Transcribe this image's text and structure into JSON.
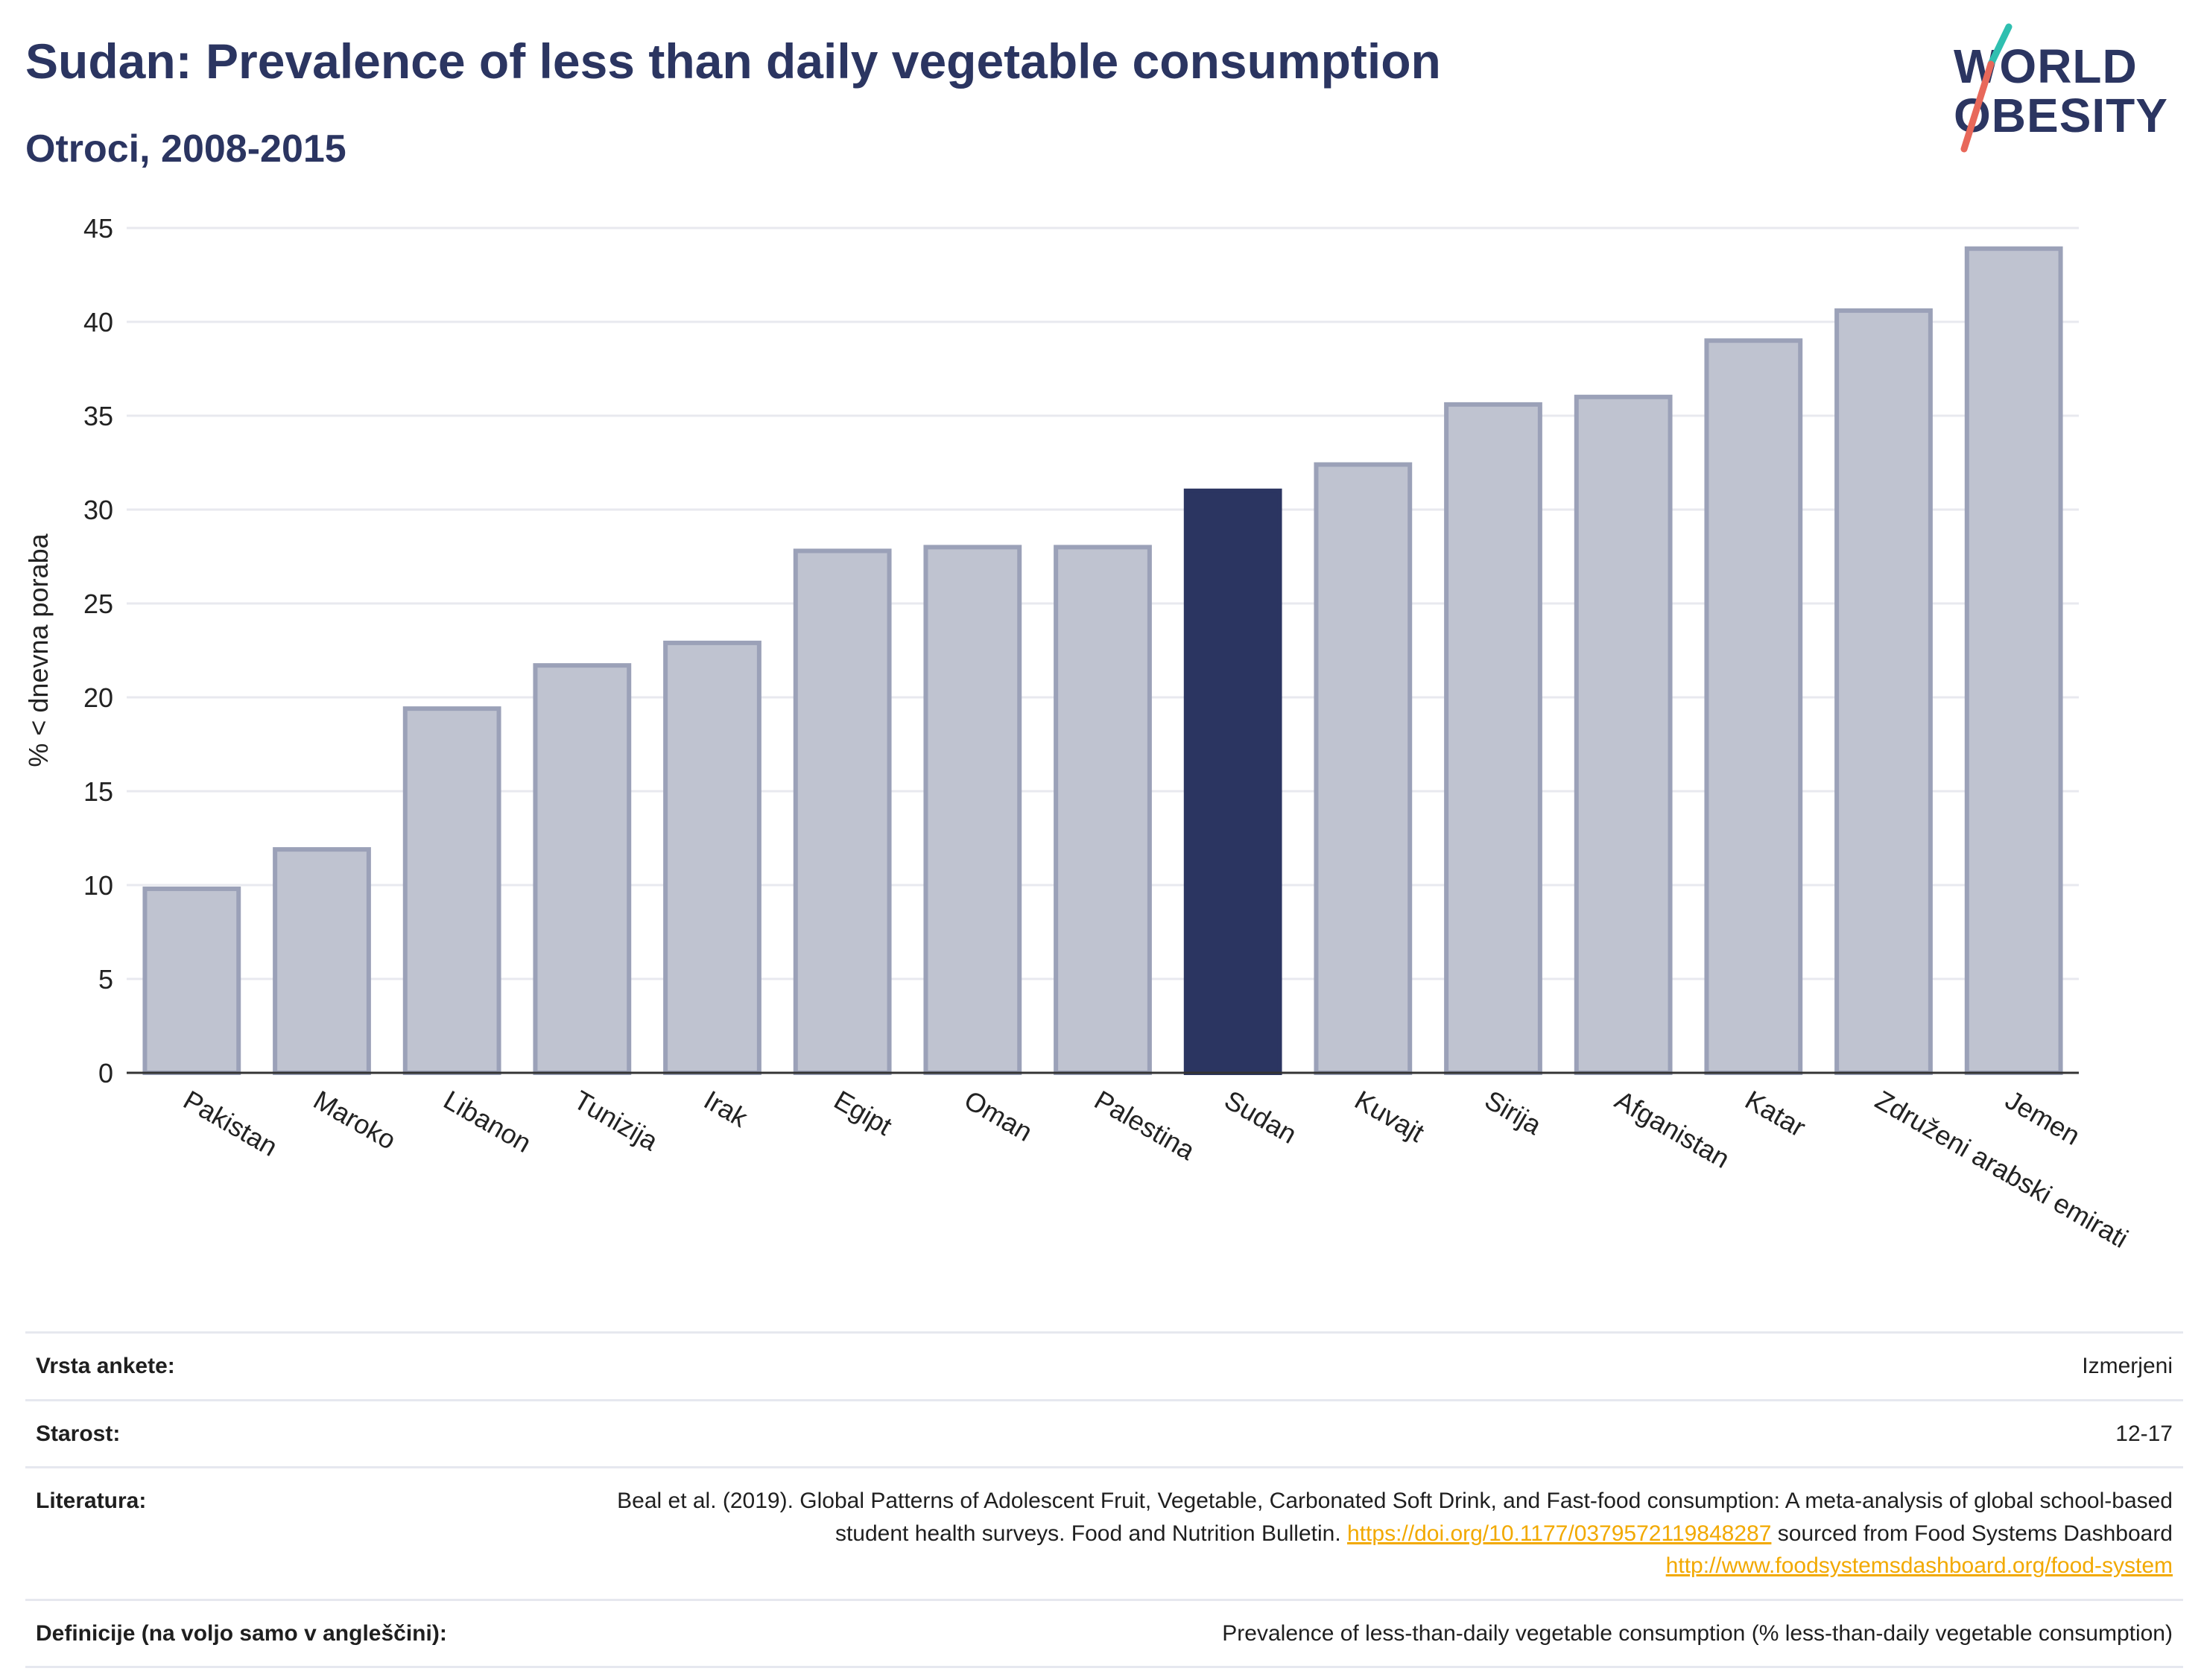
{
  "header": {
    "title": "Sudan: Prevalence of less than daily vegetable consumption",
    "subtitle": "Otroci, 2008-2015"
  },
  "logo": {
    "line1": "WORLD",
    "line2": "OBESITY",
    "colors": {
      "text": "#2b3561",
      "slash_top": "#2fbfb0",
      "slash_bottom": "#e8685a"
    }
  },
  "chart_data": {
    "type": "bar",
    "ylabel": "% < dnevna poraba",
    "xlabel": "",
    "ylim": [
      0,
      45
    ],
    "yticks": [
      0,
      5,
      10,
      15,
      20,
      25,
      30,
      35,
      40,
      45
    ],
    "grid": true,
    "highlight": "Sudan",
    "categories": [
      "Pakistan",
      "Maroko",
      "Libanon",
      "Tunizija",
      "Irak",
      "Egipt",
      "Oman",
      "Palestina",
      "Sudan",
      "Kuvajt",
      "Sirija",
      "Afganistan",
      "Katar",
      "Združeni arabski emirati",
      "Jemen"
    ],
    "values": [
      9.8,
      11.9,
      19.4,
      21.7,
      22.9,
      27.8,
      28.0,
      28.0,
      31.0,
      32.4,
      35.6,
      36.0,
      39.0,
      40.6,
      43.9
    ],
    "colors": {
      "bar": "#bfc3d0",
      "bar_edge": "#9ba1b8",
      "highlight": "#2b3561"
    }
  },
  "info": {
    "survey_type_label": "Vrsta ankete:",
    "survey_type_value": "Izmerjeni",
    "age_label": "Starost:",
    "age_value": "12-17",
    "references_label": "Literatura:",
    "references_text_1": "Beal et al. (2019). Global Patterns of Adolescent Fruit, Vegetable, Carbonated Soft Drink, and Fast-food consumption: A meta-analysis of global school-based student health surveys. Food and Nutrition Bulletin.",
    "references_link_1": "https://doi.org/10.1177/0379572119848287",
    "references_text_2": "sourced from Food Systems Dashboard",
    "references_link_2": "http://www.foodsystemsdashboard.org/food-system",
    "definitions_label": "Definicije (na voljo samo v angleščini):",
    "definitions_value": "Prevalence of less-than-daily vegetable consumption (% less-than-daily vegetable consumption)"
  }
}
